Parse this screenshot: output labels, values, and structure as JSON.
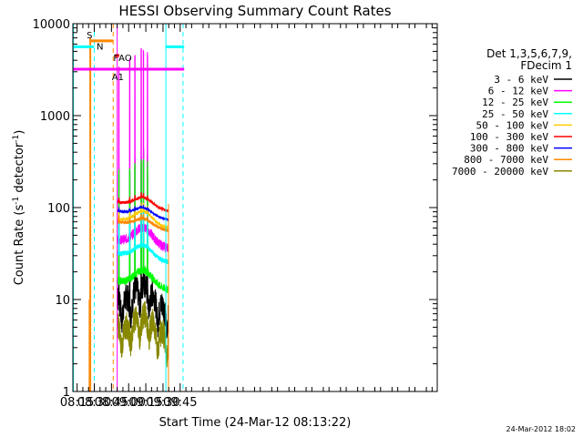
{
  "chart_data": {
    "type": "line",
    "title": "HESSI Observing Summary Count Rates",
    "xlabel": "Start Time (24-Mar-12 08:13:22)",
    "ylabel": "Count Rate (s",
    "ylabel_sup1": "-1",
    "ylabel_mid": " detector",
    "ylabel_sup2": "-1",
    "ylabel_end": ")",
    "yscale": "log",
    "ylim": [
      1,
      10000
    ],
    "xlim_minutes": [
      491.3,
      809.5
    ],
    "x_ticks": [
      {
        "label": "08:15",
        "min": 495
      },
      {
        "label": "08:30",
        "min": 510
      },
      {
        "label": "08:45",
        "min": 525
      },
      {
        "label": "09:00",
        "min": 540
      },
      {
        "label": "09:15",
        "min": 555
      },
      {
        "label": "09:30",
        "min": 570
      },
      {
        "label": "09:45",
        "min": 585
      }
    ],
    "y_ticks": [
      {
        "label": "1",
        "value": 1
      },
      {
        "label": "10",
        "value": 10
      },
      {
        "label": "100",
        "value": 100
      },
      {
        "label": "1000",
        "value": 1000
      },
      {
        "label": "10000",
        "value": 10000
      }
    ],
    "legend_header": [
      "Det 1,3,5,6,7,9,",
      "FDecim 1"
    ],
    "legend_position": "right",
    "series": [
      {
        "name": "3 - 6 keV",
        "color": "#000000",
        "level": 8
      },
      {
        "name": "6 - 12 keV",
        "color": "#ff00ff",
        "level": 45
      },
      {
        "name": "12 - 25 keV",
        "color": "#00ff00",
        "level": 16
      },
      {
        "name": "25 - 50 keV",
        "color": "#00ffff",
        "level": 32
      },
      {
        "name": "50 - 100 keV",
        "color": "#ffcc00",
        "level": 75
      },
      {
        "name": "100 - 300 keV",
        "color": "#ff0000",
        "level": 115
      },
      {
        "name": "300 - 800 keV",
        "color": "#0000ff",
        "level": 92
      },
      {
        "name": "800 - 7000 keV",
        "color": "#ff8800",
        "level": 70
      },
      {
        "name": "7000 - 20000 keV",
        "color": "#888800",
        "level": 4
      }
    ],
    "flags": [
      {
        "label": "S",
        "color": "#ff8800",
        "y": 6500
      },
      {
        "label": "N",
        "color": "#00ffff",
        "y": 5600
      },
      {
        "label": "F",
        "color": "#ff0000",
        "y": 4500
      },
      {
        "label": "AO",
        "color": "#ff0000",
        "y": 4500
      },
      {
        "label": "A1",
        "color": "#ff00ff",
        "y": 3200
      }
    ],
    "timestamp": "24-Mar-2012 18:02"
  }
}
